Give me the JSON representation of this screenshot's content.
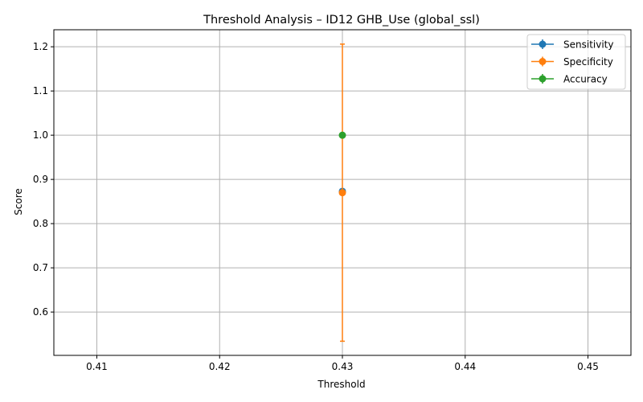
{
  "chart_data": {
    "type": "scatter",
    "title": "Threshold Analysis – ID12 GHB_Use (global_ssl)",
    "xlabel": "Threshold",
    "ylabel": "Score",
    "xlim": [
      0.4065,
      0.4535
    ],
    "ylim": [
      0.502,
      1.2385
    ],
    "xticks": [
      0.41,
      0.42,
      0.43,
      0.44,
      0.45
    ],
    "xtick_labels": [
      "0.41",
      "0.42",
      "0.43",
      "0.44",
      "0.45"
    ],
    "yticks": [
      0.6,
      0.7,
      0.8,
      0.9,
      1.0,
      1.1,
      1.2
    ],
    "ytick_labels": [
      "0.6",
      "0.7",
      "0.8",
      "0.9",
      "1.0",
      "1.1",
      "1.2"
    ],
    "grid": true,
    "legend_position": "top-right",
    "series": [
      {
        "name": "Sensitivity",
        "color": "#1f77b4",
        "x": [
          0.43
        ],
        "y": [
          0.873
        ],
        "yerr": [
          0.0
        ]
      },
      {
        "name": "Specificity",
        "color": "#ff7f0e",
        "x": [
          0.43
        ],
        "y": [
          0.87
        ],
        "yerr": [
          0.336
        ]
      },
      {
        "name": "Accuracy",
        "color": "#2ca02c",
        "x": [
          0.43
        ],
        "y": [
          1.0
        ],
        "yerr": [
          0.0
        ]
      }
    ]
  }
}
